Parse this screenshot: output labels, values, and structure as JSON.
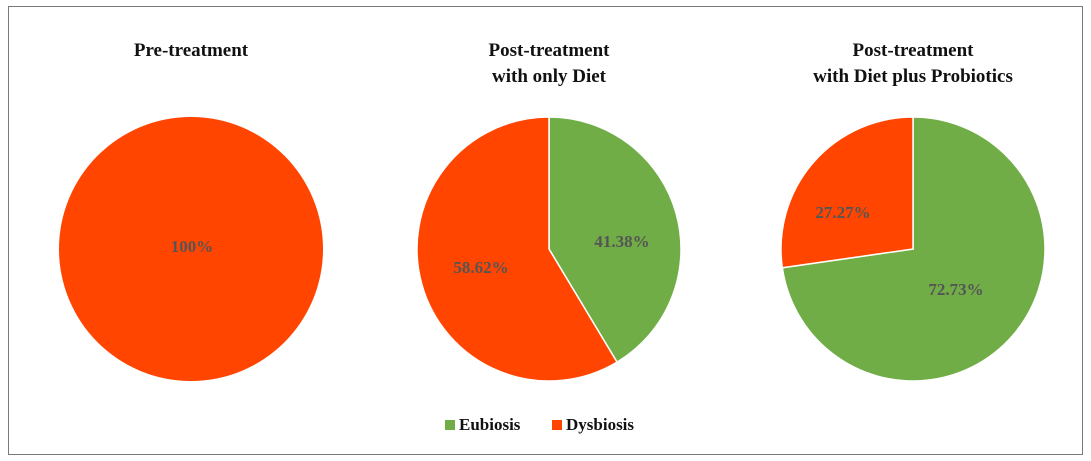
{
  "chart_data": [
    {
      "type": "pie",
      "title": [
        "Pre-treatment"
      ],
      "slices": [
        {
          "name": "Dysbiosis",
          "value": 100,
          "label": "100%"
        }
      ]
    },
    {
      "type": "pie",
      "title": [
        "Post-treatment",
        "with only Diet"
      ],
      "slices": [
        {
          "name": "Eubiosis",
          "value": 41.38,
          "label": "41.38%"
        },
        {
          "name": "Dysbiosis",
          "value": 58.62,
          "label": "58.62%"
        }
      ]
    },
    {
      "type": "pie",
      "title": [
        "Post-treatment",
        "with Diet plus Probiotics"
      ],
      "slices": [
        {
          "name": "Eubiosis",
          "value": 72.73,
          "label": "72.73%"
        },
        {
          "name": "Dysbiosis",
          "value": 27.27,
          "label": "27.27%"
        }
      ]
    }
  ],
  "legend": {
    "placement": "bottom-center",
    "items": [
      {
        "name": "Eubiosis",
        "color": "#70ad47"
      },
      {
        "name": "Dysbiosis",
        "color": "#ff4500"
      }
    ]
  },
  "colors": {
    "Eubiosis": "#70ad47",
    "Dysbiosis": "#ff4500"
  }
}
